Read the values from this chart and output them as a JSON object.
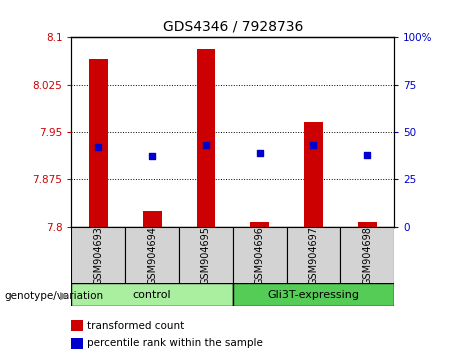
{
  "title": "GDS4346 / 7928736",
  "samples": [
    "GSM904693",
    "GSM904694",
    "GSM904695",
    "GSM904696",
    "GSM904697",
    "GSM904698"
  ],
  "transformed_counts": [
    8.065,
    7.825,
    8.082,
    7.808,
    7.965,
    7.808
  ],
  "percentile_ranks": [
    42,
    37,
    43,
    39,
    43,
    38
  ],
  "y_min": 7.8,
  "y_max": 8.1,
  "y_ticks": [
    7.8,
    7.875,
    7.95,
    8.025,
    8.1
  ],
  "y_tick_labels": [
    "7.8",
    "7.875",
    "7.95",
    "8.025",
    "8.1"
  ],
  "y_right_ticks": [
    0,
    25,
    50,
    75,
    100
  ],
  "y_right_labels": [
    "0",
    "25",
    "50",
    "75",
    "100%"
  ],
  "bar_color": "#CC0000",
  "dot_color": "#0000CC",
  "bar_base": 7.8,
  "left_axis_color": "#CC0000",
  "right_axis_color": "#0000CC",
  "legend_items": [
    "transformed count",
    "percentile rank within the sample"
  ],
  "legend_colors": [
    "#CC0000",
    "#0000CC"
  ],
  "genotype_label": "genotype/variation",
  "plot_bg_color": "#FFFFFF",
  "sample_bg_color": "#D3D3D3",
  "group_bg_light": "#AAEEA0",
  "group_bg_dark": "#55CC55",
  "group_ranges": [
    [
      0,
      2,
      "control"
    ],
    [
      3,
      5,
      "Gli3T-expressing"
    ]
  ],
  "group_colors": [
    "#AAEEA0",
    "#55CC55"
  ]
}
